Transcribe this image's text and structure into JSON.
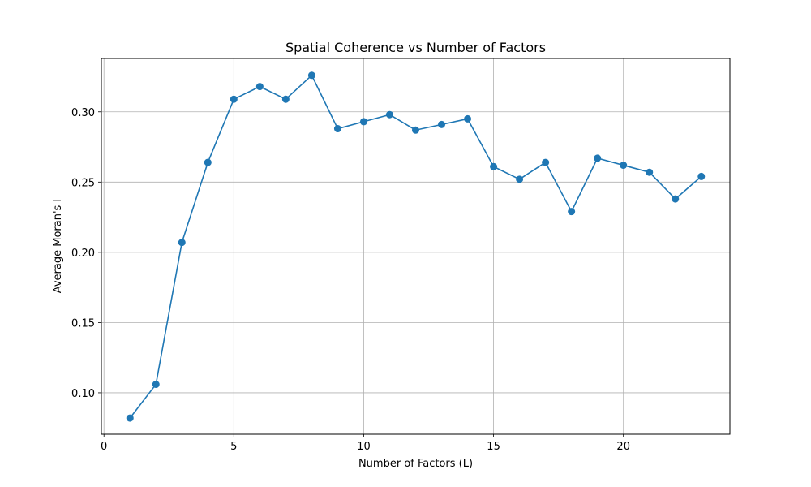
{
  "chart_data": {
    "type": "line",
    "title": "Spatial Coherence vs Number of Factors",
    "xlabel": "Number of Factors (L)",
    "ylabel": "Average Moran's I",
    "xlim": [
      -0.1,
      24.1
    ],
    "ylim": [
      0.0705,
      0.338
    ],
    "xticks": [
      0,
      5,
      10,
      15,
      20
    ],
    "yticks": [
      0.1,
      0.15,
      0.2,
      0.25,
      0.3
    ],
    "ytick_labels": [
      "0.10",
      "0.15",
      "0.20",
      "0.25",
      "0.30"
    ],
    "grid": true,
    "color": "#1f77b4",
    "marker": "circle",
    "x": [
      1,
      2,
      3,
      4,
      5,
      6,
      7,
      8,
      9,
      10,
      11,
      12,
      13,
      14,
      15,
      16,
      17,
      18,
      19,
      20,
      21,
      22,
      23
    ],
    "series": [
      {
        "values": [
          0.082,
          0.106,
          0.207,
          0.264,
          0.309,
          0.318,
          0.309,
          0.326,
          0.288,
          0.293,
          0.298,
          0.287,
          0.291,
          0.295,
          0.261,
          0.252,
          0.264,
          0.229,
          0.267,
          0.262,
          0.257,
          0.238,
          0.254
        ]
      }
    ]
  }
}
